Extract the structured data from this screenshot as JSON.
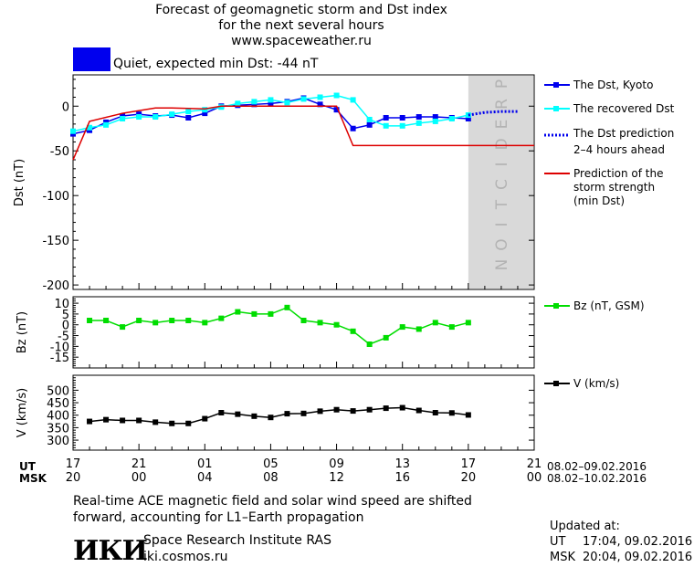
{
  "header": {
    "title_line1": "Forecast of geomagnetic storm and Dst index",
    "title_line2": "for the next several hours",
    "title_line3": "www.spaceweather.ru",
    "status_text": "Quiet, expected min Dst: -44 nT",
    "status_color": "#0000ee"
  },
  "prediction_label": "PREDICTION",
  "legend": {
    "dst_kyoto": "The Dst, Kyoto",
    "dst_recovered": "The recovered Dst",
    "dst_prediction_1": "The Dst prediction",
    "dst_prediction_2": "2–4 hours ahead",
    "storm_1": "Prediction of the",
    "storm_2": "storm strength",
    "storm_3": "(min Dst)",
    "bz": "Bz (nT, GSM)",
    "v": "V (km/s)"
  },
  "axes": {
    "ut_label": "UT",
    "msk_label": "MSK",
    "ut_ticks": [
      "17",
      "21",
      "01",
      "05",
      "09",
      "13",
      "17",
      "21"
    ],
    "msk_ticks": [
      "20",
      "00",
      "04",
      "08",
      "12",
      "16",
      "20",
      "00"
    ],
    "ut_range": "08.02–09.02.2016",
    "msk_range": "08.02–10.02.2016"
  },
  "footer": {
    "note_line1": "Real-time ACE magnetic field and solar wind speed are shifted",
    "note_line2": "forward, accounting for L1–Earth propagation",
    "logo_text": "ИКИ",
    "institute": "Space Research Institute RAS",
    "site": "iki.cosmos.ru",
    "updated_label": "Updated at:",
    "updated_ut_label": "UT",
    "updated_ut": "17:04, 09.02.2016",
    "updated_msk_label": "MSK",
    "updated_msk": "20:04, 09.02.2016"
  },
  "chart_data": [
    {
      "type": "line",
      "ylabel": "Dst (nT)",
      "ylim": [
        -205,
        35
      ],
      "yticks": [
        0,
        -50,
        -100,
        -150,
        -200
      ],
      "xlim": [
        0,
        28
      ],
      "prediction_start": 24,
      "series": [
        {
          "name": "The Dst, Kyoto",
          "color": "#0000ee",
          "marker": "square",
          "x": [
            0,
            1,
            2,
            3,
            4,
            5,
            6,
            7,
            8,
            9,
            10,
            11,
            12,
            13,
            14,
            15,
            16,
            17,
            18,
            19,
            20,
            21,
            22,
            23,
            24
          ],
          "y": [
            -31,
            -27,
            -18,
            -11,
            -9,
            -11,
            -10,
            -13,
            -8,
            0,
            1,
            2,
            3,
            5,
            9,
            2,
            -4,
            -25,
            -21,
            -13,
            -13,
            -12,
            -12,
            -13,
            -14
          ]
        },
        {
          "name": "The recovered Dst",
          "color": "#00ffff",
          "marker": "square",
          "x": [
            0,
            1,
            2,
            3,
            4,
            5,
            6,
            7,
            8,
            9,
            10,
            11,
            12,
            13,
            14,
            15,
            16,
            17,
            18,
            19,
            20,
            21,
            22,
            23,
            24
          ],
          "y": [
            -28,
            -24,
            -21,
            -14,
            -12,
            -12,
            -9,
            -6,
            -4,
            -1,
            3,
            5,
            7,
            4,
            8,
            10,
            12,
            7,
            -15,
            -22,
            -22,
            -19,
            -17,
            -14,
            -10
          ]
        },
        {
          "name": "The Dst prediction 2–4 hours ahead",
          "color": "#0000ee",
          "style": "dotted",
          "x": [
            24,
            25,
            26,
            27
          ],
          "y": [
            -10,
            -7,
            -6,
            -6
          ]
        },
        {
          "name": "Prediction of the storm strength (min Dst)",
          "color": "#dd0000",
          "x": [
            0,
            1,
            3,
            5,
            6,
            8,
            9,
            12,
            14,
            16,
            17,
            18,
            20,
            22,
            24,
            26,
            28
          ],
          "y": [
            -60,
            -17,
            -8,
            -2,
            -2,
            -3,
            0,
            0,
            0,
            0,
            -44,
            -44,
            -44,
            -44,
            -44,
            -44,
            -44
          ]
        }
      ]
    },
    {
      "type": "line",
      "ylabel": "Bz (nT)",
      "ylim": [
        -20,
        13
      ],
      "yticks": [
        10,
        5,
        0,
        -5,
        -10,
        -15
      ],
      "xlim": [
        0,
        28
      ],
      "series": [
        {
          "name": "Bz (nT, GSM)",
          "color": "#00dd00",
          "marker": "square",
          "x": [
            1,
            2,
            3,
            4,
            5,
            6,
            7,
            8,
            9,
            10,
            11,
            12,
            13,
            14,
            15,
            16,
            17,
            18,
            19,
            20,
            21,
            22,
            23,
            24
          ],
          "y": [
            2,
            2,
            -1,
            2,
            1,
            2,
            2,
            1,
            3,
            6,
            5,
            5,
            8,
            2,
            1,
            0,
            -3,
            -9,
            -6,
            -1,
            -2,
            1,
            -1,
            1
          ]
        }
      ]
    },
    {
      "type": "line",
      "ylabel": "V (km/s)",
      "ylim": [
        260,
        560
      ],
      "yticks": [
        500,
        450,
        400,
        350,
        300
      ],
      "xlim": [
        0,
        28
      ],
      "series": [
        {
          "name": "V (km/s)",
          "color": "#000000",
          "marker": "square",
          "x": [
            1,
            2,
            3,
            4,
            5,
            6,
            7,
            8,
            9,
            10,
            11,
            12,
            13,
            14,
            15,
            16,
            17,
            18,
            19,
            20,
            21,
            22,
            23,
            24
          ],
          "y": [
            375,
            382,
            379,
            379,
            372,
            367,
            367,
            386,
            410,
            404,
            396,
            391,
            406,
            407,
            416,
            422,
            417,
            422,
            428,
            430,
            419,
            410,
            409,
            401
          ]
        }
      ]
    }
  ]
}
